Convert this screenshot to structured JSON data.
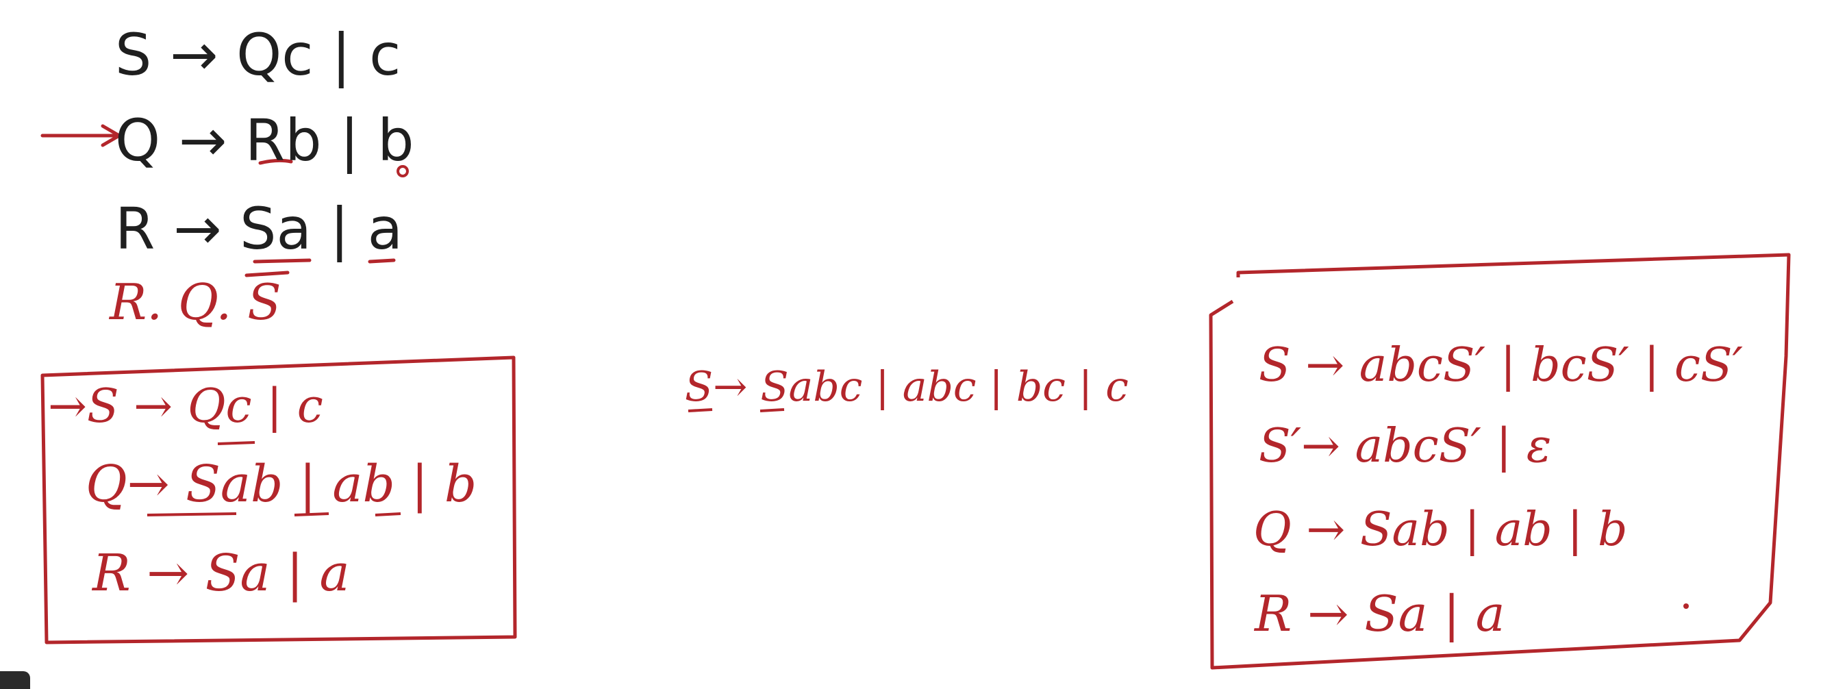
{
  "colors": {
    "ink": "#b3262b",
    "typed": "#1f1f1f"
  },
  "typed_grammar": [
    "S → Qc | c",
    "Q → Rb | b",
    "R → Sa | a"
  ],
  "order_note": "R. Q. S",
  "box_left": [
    "→S → Qc | c",
    "Q→ Sab | ab | b",
    "R → Sa | a"
  ],
  "middle_rule": "S→ Sabc | abc | bc | c",
  "box_right": [
    "S → abcS′ | bcS′ | cS′",
    "S′→ abcS′ | ε",
    "Q → Sab | ab | b",
    "R → Sa | a"
  ],
  "icons": {
    "corner": "dark-tab-icon",
    "pointer": "red-arrow-icon"
  }
}
